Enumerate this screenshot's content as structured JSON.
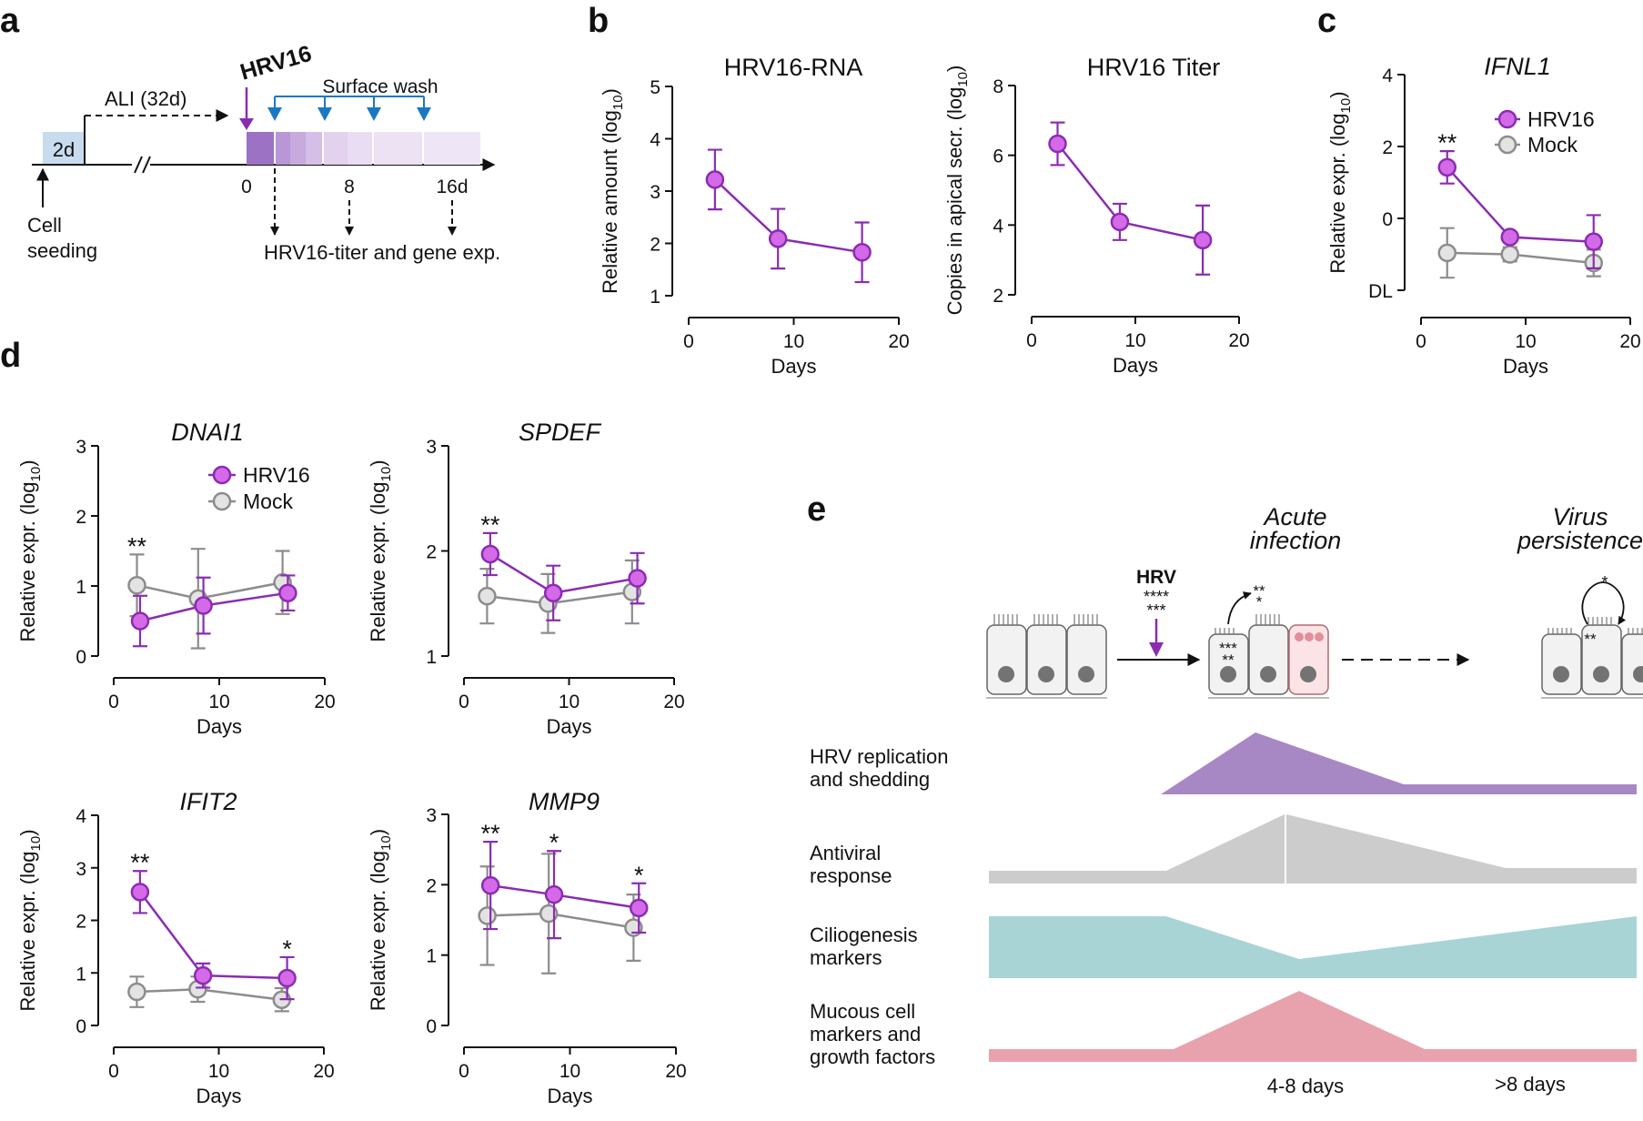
{
  "colors": {
    "hrv": "#8a2cb1",
    "hrv_fill": "#d46ae8",
    "mock": "#8c8c8c",
    "mock_fill": "#e3e3e3",
    "wash": "#1a78c2",
    "replication": "#a888c4",
    "antiviral": "#cccccc",
    "cilio": "#a9d4d6",
    "mucous": "#e8a2ad",
    "alicell": "#c7dcee"
  },
  "panel_labels": {
    "a": "a",
    "b": "b",
    "c": "c",
    "d": "d",
    "e": "e"
  },
  "panel_a": {
    "twod": "2d",
    "ali": "ALI (32d)",
    "hrv16": "HRV16",
    "surface_wash": "Surface wash",
    "cell": "Cell",
    "seeding": "seeding",
    "t0": "0",
    "t8": "8",
    "t16": "16d",
    "readout": "HRV16-titer and gene exp."
  },
  "legend": {
    "hrv": "HRV16",
    "mock": "Mock"
  },
  "panel_e": {
    "hrv": "HRV",
    "hrv_stars_1": "****",
    "hrv_stars_2": "***",
    "acute_1": "Acute",
    "acute_2": "infection",
    "persist_1": "Virus",
    "persist_2": "persistence",
    "cell_stars_1": "***",
    "cell_stars_2": "**",
    "arrow_stars_1": "**",
    "arrow_stars_2": "*",
    "persist_star": "*",
    "persist_cell_stars": "**",
    "bands": [
      {
        "name": "replication",
        "line1": "HRV replication",
        "line2": "and shedding",
        "line3": ""
      },
      {
        "name": "antiviral",
        "line1": "Antiviral",
        "line2": "response",
        "line3": ""
      },
      {
        "name": "cilio",
        "line1": "Ciliogenesis",
        "line2": "markers",
        "line3": ""
      },
      {
        "name": "mucous",
        "line1": "Mucous cell",
        "line2": "markers and",
        "line3": "growth factors"
      }
    ],
    "time1": "4-8 days",
    "time2": ">8 days"
  },
  "chart_data": [
    {
      "id": "b-rna",
      "type": "line",
      "title": "HRV16-RNA",
      "title_style": "plain",
      "xlabel": "Days",
      "ylabel": "Relative amount (log10)",
      "xlim": [
        0,
        20
      ],
      "ylim": [
        1,
        5
      ],
      "xticks": [
        0,
        10,
        20
      ],
      "yticks": [
        1,
        2,
        3,
        4,
        5
      ],
      "ytick_labels": [
        "1",
        "2",
        "3",
        "4",
        "5"
      ],
      "series": [
        {
          "name": "HRV16",
          "x": [
            2.5,
            8.5,
            16.5
          ],
          "y": [
            3.22,
            2.09,
            1.83
          ],
          "err": [
            0.57,
            0.57,
            0.57
          ]
        }
      ]
    },
    {
      "id": "b-titer",
      "type": "line",
      "title": "HRV16 Titer",
      "title_style": "plain",
      "xlabel": "Days",
      "ylabel": "Copies in apical secr. (log10)",
      "xlim": [
        0,
        20
      ],
      "ylim": [
        2,
        8
      ],
      "xticks": [
        0,
        10,
        20
      ],
      "yticks": [
        2,
        4,
        6,
        8
      ],
      "ytick_labels": [
        "2",
        "4",
        "6",
        "8"
      ],
      "series": [
        {
          "name": "HRV16",
          "x": [
            2.5,
            8.5,
            16.5
          ],
          "y": [
            6.33,
            4.09,
            3.57
          ],
          "err": [
            0.61,
            0.52,
            0.99
          ]
        }
      ]
    },
    {
      "id": "c-ifnl1",
      "type": "line",
      "title": "IFNL1",
      "title_style": "italic",
      "xlabel": "Days",
      "ylabel": "Relative expr. (log10)",
      "xlim": [
        0,
        20
      ],
      "ylim": [
        -2,
        4
      ],
      "xticks": [
        0,
        10,
        20
      ],
      "yticks": [
        -2,
        0,
        2,
        4
      ],
      "ytick_labels": [
        "DL",
        "0",
        "2",
        "4"
      ],
      "annotations": [
        {
          "x": 2.5,
          "text": "**"
        }
      ],
      "series": [
        {
          "name": "HRV16",
          "x": [
            2.5,
            8.5,
            16.5
          ],
          "y": [
            1.42,
            -0.52,
            -0.65
          ],
          "err": [
            0.45,
            0.1,
            0.74
          ]
        },
        {
          "name": "Mock",
          "x": [
            2.5,
            8.5,
            16.5
          ],
          "y": [
            -0.96,
            -1.0,
            -1.24
          ],
          "err": [
            0.69,
            0.2,
            0.37
          ]
        }
      ]
    },
    {
      "id": "d-dnai1",
      "type": "line",
      "title": "DNAI1",
      "title_style": "italic",
      "xlabel": "Days",
      "ylabel": "Relative expr. (log10)",
      "xlim": [
        0,
        20
      ],
      "ylim": [
        0,
        3
      ],
      "xticks": [
        0,
        10,
        20
      ],
      "yticks": [
        0,
        1,
        2,
        3
      ],
      "ytick_labels": [
        "0",
        "1",
        "2",
        "3"
      ],
      "annotations": [
        {
          "x": 2.2,
          "text": "**"
        }
      ],
      "series": [
        {
          "name": "HRV16",
          "x": [
            2.5,
            8.5,
            16.5
          ],
          "y": [
            0.5,
            0.72,
            0.9
          ],
          "err": [
            0.36,
            0.4,
            0.25
          ]
        },
        {
          "name": "Mock",
          "x": [
            2.2,
            8.0,
            16.0
          ],
          "y": [
            1.01,
            0.82,
            1.05
          ],
          "err": [
            0.44,
            0.71,
            0.45
          ]
        }
      ]
    },
    {
      "id": "d-spdef",
      "type": "line",
      "title": "SPDEF",
      "title_style": "italic",
      "xlabel": "Days",
      "ylabel": "Relative expr. (log10)",
      "xlim": [
        0,
        20
      ],
      "ylim": [
        1,
        3
      ],
      "xticks": [
        0,
        10,
        20
      ],
      "yticks": [
        1,
        2,
        3
      ],
      "ytick_labels": [
        "1",
        "2",
        "3"
      ],
      "annotations": [
        {
          "x": 2.5,
          "text": "**"
        }
      ],
      "series": [
        {
          "name": "HRV16",
          "x": [
            2.5,
            8.5,
            16.5
          ],
          "y": [
            1.97,
            1.6,
            1.74
          ],
          "err": [
            0.2,
            0.26,
            0.24
          ]
        },
        {
          "name": "Mock",
          "x": [
            2.2,
            8.0,
            16.0
          ],
          "y": [
            1.57,
            1.5,
            1.61
          ],
          "err": [
            0.26,
            0.28,
            0.3
          ]
        }
      ]
    },
    {
      "id": "d-ifit2",
      "type": "line",
      "title": "IFIT2",
      "title_style": "italic",
      "xlabel": "Days",
      "ylabel": "Relative expr. (log10)",
      "xlim": [
        0,
        20
      ],
      "ylim": [
        0,
        4
      ],
      "xticks": [
        0,
        10,
        20
      ],
      "yticks": [
        0,
        1,
        2,
        3,
        4
      ],
      "ytick_labels": [
        "0",
        "1",
        "2",
        "3",
        "4"
      ],
      "annotations": [
        {
          "x": 2.5,
          "text": "**"
        },
        {
          "x": 16.5,
          "text": "*"
        }
      ],
      "series": [
        {
          "name": "HRV16",
          "x": [
            2.5,
            8.5,
            16.5
          ],
          "y": [
            2.54,
            0.95,
            0.9
          ],
          "err": [
            0.4,
            0.23,
            0.4
          ]
        },
        {
          "name": "Mock",
          "x": [
            2.2,
            8.0,
            16.0
          ],
          "y": [
            0.64,
            0.69,
            0.49
          ],
          "err": [
            0.29,
            0.24,
            0.22
          ]
        }
      ]
    },
    {
      "id": "d-mmp9",
      "type": "line",
      "title": "MMP9",
      "title_style": "italic",
      "xlabel": "Days",
      "ylabel": "Relative expr. (log10)",
      "xlim": [
        0,
        20
      ],
      "ylim": [
        0,
        3
      ],
      "xticks": [
        0,
        10,
        20
      ],
      "yticks": [
        0,
        1,
        2,
        3
      ],
      "ytick_labels": [
        "0",
        "1",
        "2",
        "3"
      ],
      "annotations": [
        {
          "x": 2.5,
          "text": "**"
        },
        {
          "x": 8.5,
          "text": "*"
        },
        {
          "x": 16.5,
          "text": "*"
        }
      ],
      "series": [
        {
          "name": "HRV16",
          "x": [
            2.5,
            8.5,
            16.5
          ],
          "y": [
            1.99,
            1.86,
            1.67
          ],
          "err": [
            0.62,
            0.62,
            0.35
          ]
        },
        {
          "name": "Mock",
          "x": [
            2.2,
            8.0,
            16.0
          ],
          "y": [
            1.56,
            1.59,
            1.39
          ],
          "err": [
            0.7,
            0.85,
            0.47
          ]
        }
      ]
    }
  ]
}
